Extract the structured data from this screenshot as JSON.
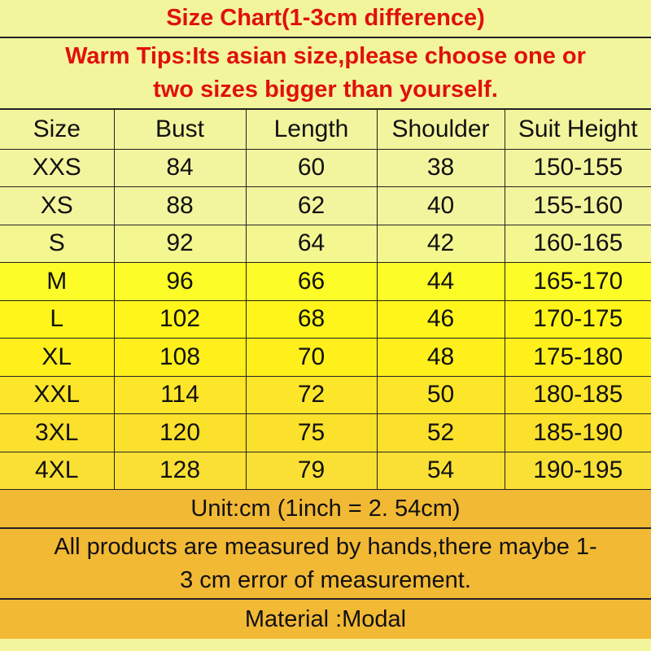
{
  "title": "Size Chart(1-3cm difference)",
  "tips": {
    "line1": "Warm Tips:Its asian size,please choose one or",
    "line2": "two sizes bigger than yourself."
  },
  "table": {
    "headers": [
      "Size",
      "Bust",
      "Length",
      "Shoulder",
      "Suit Height"
    ],
    "rows": [
      [
        "XXS",
        "84",
        "60",
        "38",
        "150-155"
      ],
      [
        "XS",
        "88",
        "62",
        "40",
        "155-160"
      ],
      [
        "S",
        "92",
        "64",
        "42",
        "160-165"
      ],
      [
        "M",
        "96",
        "66",
        "44",
        "165-170"
      ],
      [
        "L",
        "102",
        "68",
        "46",
        "170-175"
      ],
      [
        "XL",
        "108",
        "70",
        "48",
        "175-180"
      ],
      [
        "XXL",
        "114",
        "72",
        "50",
        "180-185"
      ],
      [
        "3XL",
        "120",
        "75",
        "52",
        "185-190"
      ],
      [
        "4XL",
        "128",
        "79",
        "54",
        "190-195"
      ]
    ],
    "row_colors": [
      "#f3f59e",
      "#f3f59e",
      "#f4f690",
      "#fcfc28",
      "#fff51a",
      "#fff01c",
      "#fde52a",
      "#fbe02c",
      "#fae034"
    ]
  },
  "unit": "Unit:cm (1inch = 2. 54cm)",
  "note": {
    "line1": "All products are measured by hands,there maybe 1-",
    "line2": "3 cm error of measurement."
  },
  "material": "Material :Modal",
  "colors": {
    "title_red": "#e0100c",
    "footer": "#f2b935"
  }
}
